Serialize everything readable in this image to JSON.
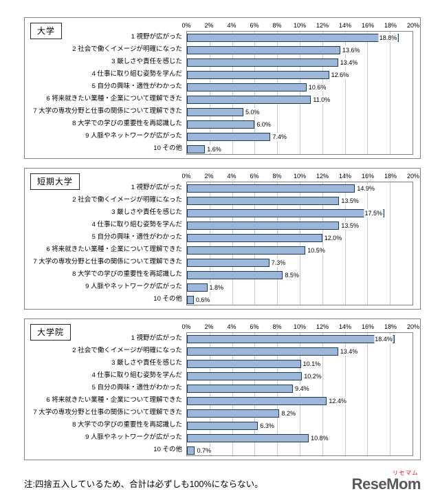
{
  "style": {
    "bar_fill": "#9db7d9",
    "bar_border": "#1c3a5e",
    "gridline": "#c9c9c9",
    "plot_border": "#808080",
    "box_border": "#7f7f7f",
    "logo_color": "#595757",
    "logo_kana_color": "#e60012"
  },
  "note": "注:四捨五入しているため、合計は必ずしも100%にならない。",
  "logo": {
    "furigana": "リセマム",
    "text": "ReseMom"
  },
  "chart_data": [
    {
      "type": "bar",
      "orientation": "horizontal",
      "title": "大学",
      "categories": [
        "1 視野が広がった",
        "2 社会で働くイメージが明確になった",
        "3 厳しさや責任を感じた",
        "4 仕事に取り組む姿勢を学んだ",
        "5 自分の興味・適性がわかった",
        "6 将来就きたい業種・企業について理解できた",
        "7 大学の専攻分野と仕事の関係について理解できた",
        "8 大学での学びの重要性を再認識した",
        "9 人脈やネットワークが広がった",
        "10 その他"
      ],
      "values": [
        18.8,
        13.6,
        13.4,
        12.6,
        10.6,
        11.0,
        5.0,
        6.0,
        7.4,
        1.6
      ],
      "x_ticks": [
        "0%",
        "2%",
        "4%",
        "6%",
        "8%",
        "10%",
        "12%",
        "14%",
        "16%",
        "18%",
        "20%"
      ],
      "xlim": [
        0,
        20
      ],
      "grid": true,
      "value_label_format": "0.0%"
    },
    {
      "type": "bar",
      "orientation": "horizontal",
      "title": "短期大学",
      "categories": [
        "1 視野が広がった",
        "2 社会で働くイメージが明確になった",
        "3 厳しさや責任を感じた",
        "4 仕事に取り組む姿勢を学んだ",
        "5 自分の興味・適性がわかった",
        "6 将来就きたい業種・企業について理解できた",
        "7 大学の専攻分野と仕事の関係について理解できた",
        "8 大学での学びの重要性を再認識した",
        "9 人脈やネットワークが広がった",
        "10 その他"
      ],
      "values": [
        14.9,
        13.5,
        17.5,
        13.5,
        12.0,
        10.5,
        7.3,
        8.5,
        1.8,
        0.6
      ],
      "x_ticks": [
        "0%",
        "2%",
        "4%",
        "6%",
        "8%",
        "10%",
        "12%",
        "14%",
        "16%",
        "18%",
        "20%"
      ],
      "xlim": [
        0,
        20
      ],
      "grid": true,
      "value_label_format": "0.0%"
    },
    {
      "type": "bar",
      "orientation": "horizontal",
      "title": "大学院",
      "categories": [
        "1 視野が広がった",
        "2 社会で働くイメージが明確になった",
        "3 厳しさや責任を感じた",
        "4 仕事に取り組む姿勢を学んだ",
        "5 自分の興味・適性がわかった",
        "6 将来就きたい業種・企業について理解できた",
        "7 大学の専攻分野と仕事の関係について理解できた",
        "8 大学での学びの重要性を再認識した",
        "9 人脈やネットワークが広がった",
        "10 その他"
      ],
      "values": [
        18.4,
        13.4,
        10.1,
        10.2,
        9.4,
        12.4,
        8.2,
        6.3,
        10.8,
        0.7
      ],
      "x_ticks": [
        "0%",
        "2%",
        "4%",
        "6%",
        "8%",
        "10%",
        "12%",
        "14%",
        "16%",
        "18%",
        "20%"
      ],
      "xlim": [
        0,
        20
      ],
      "grid": true,
      "value_label_format": "0.0%"
    }
  ]
}
